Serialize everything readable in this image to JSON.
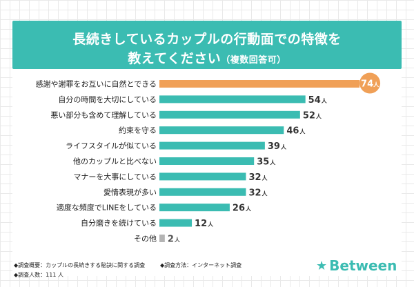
{
  "title_line1": "長続きしているカップルの行動面での特徴を",
  "title_line2": "教えてください",
  "title_note": "（複数回答可）",
  "footer": {
    "survey_outline": "◆調査概要：カップルの長続きする秘訣に関する調査",
    "survey_method": "◆調査方法：インターネット調査",
    "respondents": "◆調査人数：111 人"
  },
  "logo_text": "Between",
  "logo_icon": "star-icon",
  "colors": {
    "banner": "#3bbcb2",
    "bar": "#3bbcb2",
    "highlight": "#f0a057",
    "other": "#b4b4b4"
  },
  "chart_data": {
    "type": "bar",
    "orientation": "horizontal",
    "unit": "人",
    "categories": [
      "感謝や謝罪をお互いに自然とできる",
      "自分の時間を大切にしている",
      "悪い部分も含めて理解している",
      "約束を守る",
      "ライフスタイルが似ている",
      "他のカップルと比べない",
      "マナーを大事にしている",
      "愛情表現が多い",
      "適度な頻度でLINEをしている",
      "自分磨きを続けている",
      "その他"
    ],
    "values": [
      74,
      54,
      52,
      46,
      39,
      35,
      32,
      32,
      26,
      12,
      2
    ],
    "highlight_index": 0,
    "muted_index": 10
  }
}
